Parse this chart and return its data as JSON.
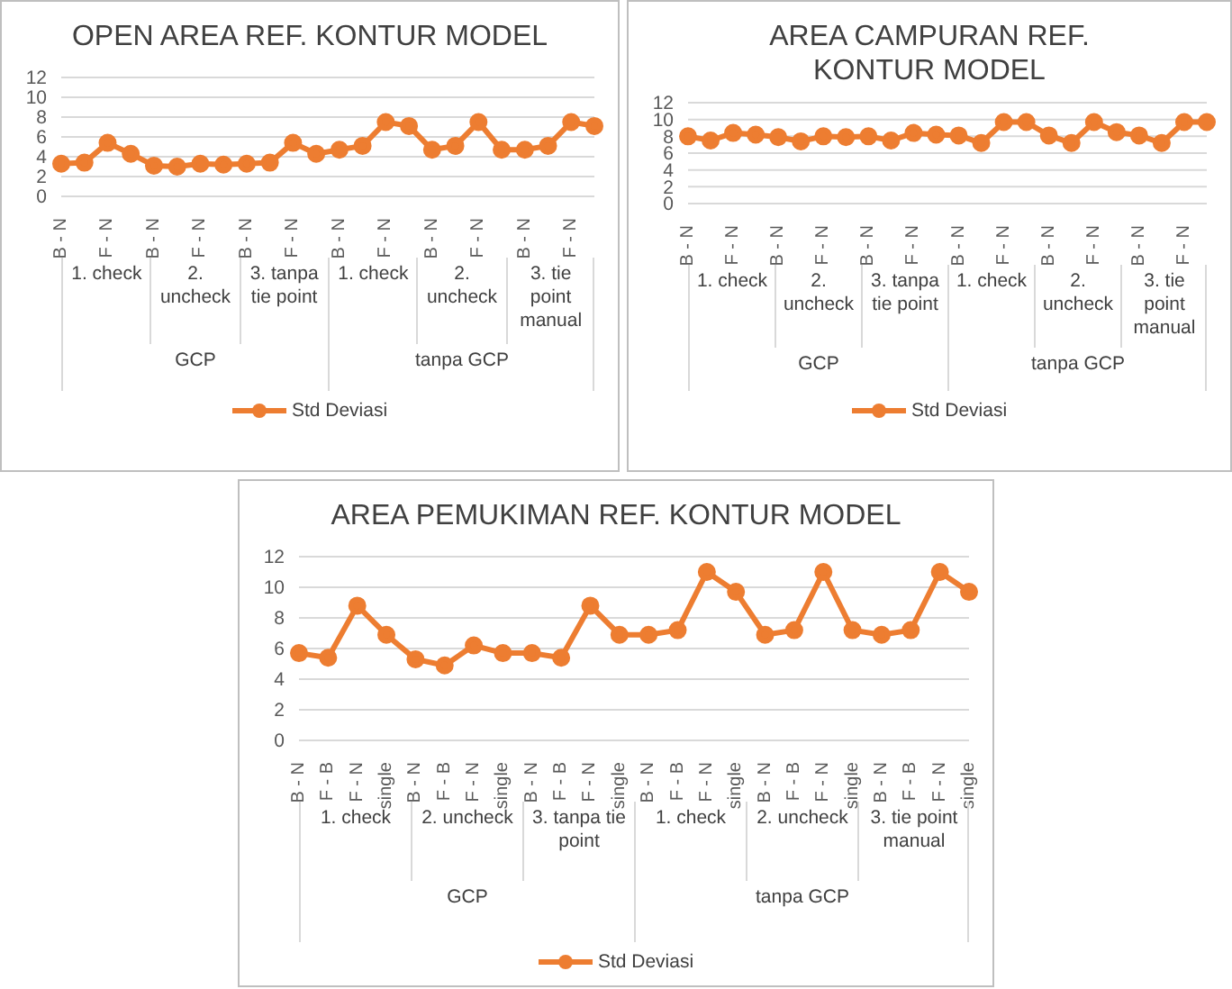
{
  "chart_data": [
    {
      "type": "line",
      "title": "OPEN AREA REF. KONTUR MODEL",
      "categories": [
        "B - N",
        null,
        "F - N",
        null,
        "B - N",
        null,
        "F - N",
        null,
        "B - N",
        null,
        "F - N",
        null,
        "B - N",
        null,
        "F - N",
        null,
        "B - N",
        null,
        "F - N",
        null,
        "B - N",
        null,
        "F - N",
        null
      ],
      "series": [
        {
          "name": "Std Deviasi",
          "color": "#ed7d31",
          "values": [
            3.3,
            3.4,
            5.4,
            4.3,
            3.1,
            3.0,
            3.3,
            3.2,
            3.3,
            3.4,
            5.4,
            4.3,
            4.7,
            5.1,
            7.5,
            7.1,
            4.7,
            5.1,
            7.5,
            4.7,
            4.7,
            5.1,
            7.5,
            7.1
          ]
        }
      ],
      "ylim": [
        0,
        12
      ],
      "yticks": [
        0,
        2,
        4,
        6,
        8,
        10,
        12
      ],
      "grid": "y",
      "legend": "bottom",
      "marker": "circle",
      "annotations": [
        "1. check",
        "2. uncheck",
        "3. tanpa tie point",
        "1. check",
        "2. uncheck",
        "3. tie point manual",
        "GCP",
        "tanpa GCP"
      ]
    },
    {
      "type": "line",
      "title": "AREA CAMPURAN REF. KONTUR MODEL",
      "categories": [
        "B - N",
        null,
        "F - N",
        null,
        "B - N",
        null,
        "F - N",
        null,
        "B - N",
        null,
        "F - N",
        null,
        "B - N",
        null,
        "F - N",
        null,
        "B - N",
        null,
        "F - N",
        null,
        "B - N",
        null,
        "F - N",
        null
      ],
      "series": [
        {
          "name": "Std Deviasi",
          "color": "#ed7d31",
          "values": [
            8.0,
            7.5,
            8.4,
            8.2,
            7.9,
            7.4,
            8.0,
            7.9,
            8.0,
            7.5,
            8.4,
            8.2,
            8.1,
            7.2,
            9.7,
            9.7,
            8.1,
            7.2,
            9.7,
            8.5,
            8.1,
            7.2,
            9.7,
            9.7
          ]
        }
      ],
      "ylim": [
        0,
        12
      ],
      "yticks": [
        0,
        2,
        4,
        6,
        8,
        10,
        12
      ],
      "grid": "y",
      "legend": "bottom",
      "marker": "circle",
      "annotations": [
        "1. check",
        "2. uncheck",
        "3. tanpa tie point",
        "1. check",
        "2. uncheck",
        "3. tie point manual",
        "GCP",
        "tanpa GCP"
      ]
    },
    {
      "type": "line",
      "title": "AREA PEMUKIMAN REF. KONTUR MODEL",
      "categories": [
        "B - N",
        "F - B",
        "F - N",
        "single",
        "B - N",
        "F - B",
        "F - N",
        "single",
        "B - N",
        "F - B",
        "F - N",
        "single",
        "B - N",
        "F - B",
        "F - N",
        "single",
        "B - N",
        "F - B",
        "F - N",
        "single",
        "B - N",
        "F - B",
        "F - N",
        "single"
      ],
      "series": [
        {
          "name": "Std Deviasi",
          "color": "#ed7d31",
          "values": [
            5.7,
            5.4,
            8.8,
            6.9,
            5.3,
            4.9,
            6.2,
            5.7,
            5.7,
            5.4,
            8.8,
            6.9,
            6.9,
            7.2,
            11.0,
            9.7,
            6.9,
            7.2,
            11.0,
            7.2,
            6.9,
            7.2,
            11.0,
            9.7
          ]
        }
      ],
      "ylim": [
        0,
        12
      ],
      "yticks": [
        0,
        2,
        4,
        6,
        8,
        10,
        12
      ],
      "grid": "y",
      "legend": "bottom",
      "marker": "circle",
      "annotations": [
        "1. check",
        "2. uncheck",
        "3. tanpa tie point",
        "1. check",
        "2. uncheck",
        "3. tie point manual",
        "GCP",
        "tanpa GCP"
      ]
    }
  ]
}
